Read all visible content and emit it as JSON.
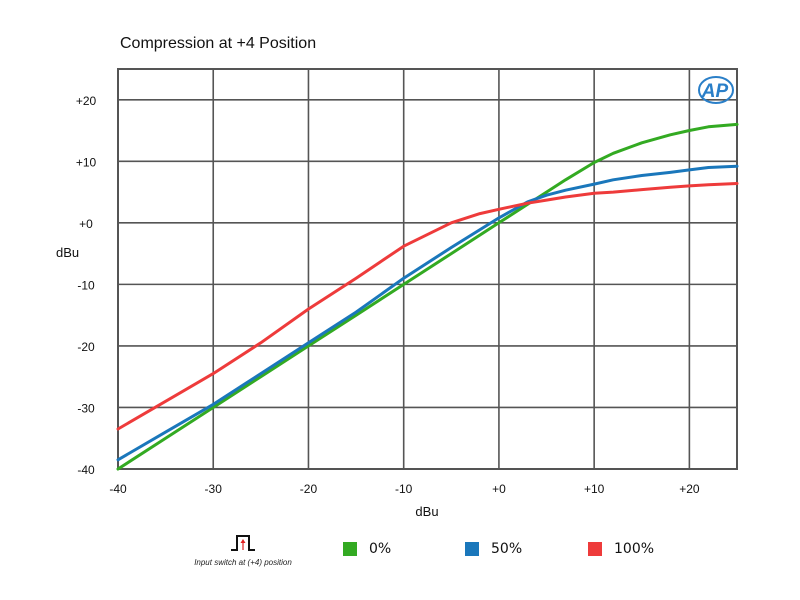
{
  "chart_data": {
    "type": "line",
    "title": "Compression at +4 Position",
    "xlabel": "dBu",
    "ylabel": "dBu",
    "xlim": [
      -40,
      25
    ],
    "ylim": [
      -40,
      25
    ],
    "x_ticks": [
      -40,
      -30,
      -20,
      -10,
      0,
      10,
      20
    ],
    "x_tick_labels": [
      "-40",
      "-30",
      "-20",
      "-10",
      "+0",
      "+10",
      "+20"
    ],
    "y_ticks": [
      -40,
      -30,
      -20,
      -10,
      0,
      10,
      20
    ],
    "y_tick_labels": [
      "-40",
      "-30",
      "-20",
      "-10",
      "+0",
      "+10",
      "+20"
    ],
    "grid": true,
    "legend_position": "bottom",
    "series": [
      {
        "name": "0%",
        "color": "#33aa22",
        "x": [
          -40,
          -35,
          -30,
          -25,
          -20,
          -15,
          -10,
          -5,
          0,
          3,
          5,
          7,
          10,
          12,
          15,
          18,
          20,
          22,
          25
        ],
        "y": [
          -40,
          -35,
          -30,
          -25,
          -20,
          -15,
          -10,
          -5,
          0,
          3,
          5,
          7,
          9.8,
          11.3,
          13,
          14.3,
          15,
          15.6,
          16
        ]
      },
      {
        "name": "50%",
        "color": "#1a77bb",
        "x": [
          -40,
          -35,
          -30,
          -25,
          -20,
          -15,
          -10,
          -5,
          0,
          3,
          5,
          7,
          10,
          12,
          15,
          18,
          20,
          22,
          25
        ],
        "y": [
          -38.5,
          -34,
          -29.5,
          -24.5,
          -19.5,
          -14.5,
          -9,
          -4,
          0.8,
          3.4,
          4.5,
          5.3,
          6.3,
          7,
          7.7,
          8.2,
          8.6,
          9,
          9.2
        ]
      },
      {
        "name": "100%",
        "color": "#ee3b3b",
        "x": [
          -40,
          -35,
          -30,
          -25,
          -20,
          -15,
          -10,
          -5,
          -2,
          0,
          3,
          5,
          7,
          10,
          12,
          15,
          18,
          20,
          22,
          25
        ],
        "y": [
          -33.5,
          -29,
          -24.5,
          -19.5,
          -14,
          -9,
          -3.8,
          0,
          1.5,
          2.2,
          3.2,
          3.7,
          4.2,
          4.8,
          5,
          5.4,
          5.8,
          6,
          6.2,
          6.4
        ]
      }
    ]
  },
  "legend_caption": "Input switch at (+4) position",
  "logo_text": "AP",
  "colors": {
    "grid": "#555555",
    "logo": "#2a7fc8"
  }
}
